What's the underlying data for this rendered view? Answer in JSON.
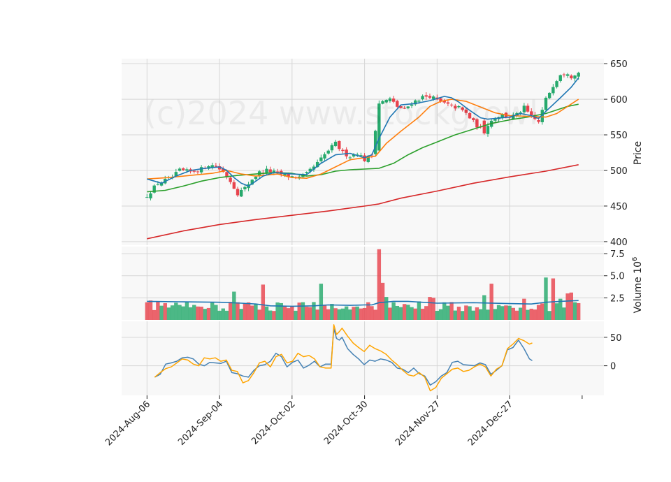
{
  "chart_data": {
    "type": "candlestick",
    "watermark": "(c)2024 www.stockgrowl",
    "colors": {
      "up": "#26a96c",
      "down": "#e8434d",
      "panel_bg": "#f8f8f8",
      "grid": "#d6d6d6",
      "ma_fast": "#1f77b4",
      "ma_mid": "#ff7f0e",
      "ma_slow": "#2ca02c",
      "ma_long": "#d62728",
      "vol_ma": "#1f77b4",
      "osc_1": "#4682b4",
      "osc_2": "#ffa500"
    },
    "x_tick_labels": [
      "2024-Aug-06",
      "2024-Sep-04",
      "2024-Oct-02",
      "2024-Oct-30",
      "2024-Nov-27",
      "2024-Dec-27"
    ],
    "x_tick_index": [
      0,
      20,
      40,
      60,
      80,
      100
    ],
    "x_range": [
      -7,
      126
    ],
    "price": {
      "ylabel": "Price",
      "ylim": [
        395,
        657
      ],
      "yticks": [
        400,
        450,
        500,
        550,
        600,
        650
      ],
      "anchors": [
        [
          0,
          465
        ],
        [
          3,
          482
        ],
        [
          7,
          490
        ],
        [
          9,
          500
        ],
        [
          12,
          498
        ],
        [
          15,
          502
        ],
        [
          17,
          508
        ],
        [
          19,
          506
        ],
        [
          21,
          498
        ],
        [
          23,
          485
        ],
        [
          25,
          468
        ],
        [
          27,
          475
        ],
        [
          29,
          488
        ],
        [
          31,
          497
        ],
        [
          33,
          500
        ],
        [
          36,
          496
        ],
        [
          39,
          492
        ],
        [
          42,
          490
        ],
        [
          44,
          495
        ],
        [
          47,
          510
        ],
        [
          50,
          528
        ],
        [
          52,
          538
        ],
        [
          54,
          525
        ],
        [
          56,
          520
        ],
        [
          58,
          525
        ],
        [
          60,
          515
        ],
        [
          62,
          522
        ],
        [
          64,
          595
        ],
        [
          67,
          600
        ],
        [
          69,
          590
        ],
        [
          71,
          585
        ],
        [
          73,
          595
        ],
        [
          76,
          603
        ],
        [
          78,
          605
        ],
        [
          80,
          598
        ],
        [
          82,
          594
        ],
        [
          84,
          590
        ],
        [
          86,
          588
        ],
        [
          88,
          580
        ],
        [
          90,
          568
        ],
        [
          92,
          558
        ],
        [
          94,
          565
        ],
        [
          96,
          575
        ],
        [
          98,
          578
        ],
        [
          100,
          575
        ],
        [
          102,
          578
        ],
        [
          104,
          588
        ],
        [
          106,
          575
        ],
        [
          108,
          568
        ],
        [
          110,
          600
        ],
        [
          112,
          620
        ],
        [
          114,
          636
        ],
        [
          116,
          638
        ],
        [
          117,
          632
        ],
        [
          118,
          636
        ],
        [
          119,
          637
        ]
      ],
      "ma_fast": [
        [
          0,
          488
        ],
        [
          4,
          482
        ],
        [
          8,
          492
        ],
        [
          12,
          500
        ],
        [
          16,
          503
        ],
        [
          20,
          505
        ],
        [
          22,
          500
        ],
        [
          24,
          490
        ],
        [
          26,
          482
        ],
        [
          28,
          478
        ],
        [
          30,
          485
        ],
        [
          32,
          492
        ],
        [
          35,
          497
        ],
        [
          40,
          495
        ],
        [
          44,
          494
        ],
        [
          48,
          510
        ],
        [
          52,
          522
        ],
        [
          56,
          524
        ],
        [
          60,
          518
        ],
        [
          62,
          522
        ],
        [
          64,
          545
        ],
        [
          67,
          575
        ],
        [
          70,
          592
        ],
        [
          74,
          594
        ],
        [
          78,
          598
        ],
        [
          82,
          604
        ],
        [
          84,
          602
        ],
        [
          86,
          596
        ],
        [
          88,
          588
        ],
        [
          90,
          581
        ],
        [
          92,
          574
        ],
        [
          94,
          572
        ],
        [
          96,
          573
        ],
        [
          100,
          575
        ],
        [
          103,
          580
        ],
        [
          106,
          577
        ],
        [
          108,
          573
        ],
        [
          110,
          583
        ],
        [
          114,
          602
        ],
        [
          117,
          617
        ],
        [
          119,
          630
        ]
      ],
      "ma_mid": [
        [
          0,
          488
        ],
        [
          6,
          490
        ],
        [
          12,
          493
        ],
        [
          18,
          496
        ],
        [
          22,
          500
        ],
        [
          26,
          495
        ],
        [
          30,
          492
        ],
        [
          36,
          495
        ],
        [
          40,
          490
        ],
        [
          44,
          489
        ],
        [
          48,
          495
        ],
        [
          52,
          505
        ],
        [
          56,
          515
        ],
        [
          60,
          518
        ],
        [
          63,
          520
        ],
        [
          66,
          538
        ],
        [
          70,
          555
        ],
        [
          75,
          575
        ],
        [
          78,
          590
        ],
        [
          81,
          597
        ],
        [
          84,
          600
        ],
        [
          88,
          597
        ],
        [
          92,
          589
        ],
        [
          96,
          581
        ],
        [
          100,
          577
        ],
        [
          105,
          576
        ],
        [
          110,
          575
        ],
        [
          113,
          580
        ],
        [
          116,
          590
        ],
        [
          119,
          600
        ]
      ],
      "ma_slow": [
        [
          0,
          470
        ],
        [
          5,
          472
        ],
        [
          10,
          478
        ],
        [
          15,
          485
        ],
        [
          20,
          490
        ],
        [
          25,
          493
        ],
        [
          30,
          495
        ],
        [
          35,
          497
        ],
        [
          40,
          496
        ],
        [
          44,
          492
        ],
        [
          48,
          494
        ],
        [
          52,
          499
        ],
        [
          56,
          501
        ],
        [
          60,
          502
        ],
        [
          64,
          503
        ],
        [
          68,
          510
        ],
        [
          72,
          522
        ],
        [
          76,
          532
        ],
        [
          80,
          540
        ],
        [
          85,
          550
        ],
        [
          90,
          558
        ],
        [
          95,
          566
        ],
        [
          100,
          571
        ],
        [
          105,
          575
        ],
        [
          110,
          580
        ],
        [
          113,
          585
        ],
        [
          116,
          590
        ],
        [
          119,
          593
        ]
      ],
      "ma_long": [
        [
          0,
          404
        ],
        [
          10,
          415
        ],
        [
          20,
          424
        ],
        [
          30,
          431
        ],
        [
          40,
          437
        ],
        [
          50,
          443
        ],
        [
          60,
          450
        ],
        [
          64,
          453
        ],
        [
          70,
          461
        ],
        [
          80,
          471
        ],
        [
          90,
          482
        ],
        [
          100,
          491
        ],
        [
          110,
          499
        ],
        [
          119,
          508
        ]
      ]
    },
    "volume": {
      "ylabel": "Volume  10",
      "ylabel_exp": "6",
      "ylim": [
        0,
        8.3
      ],
      "yticks": [
        2.5,
        5.0,
        7.5
      ],
      "ytick_labels": [
        "2.5",
        "5.0",
        "7.5"
      ],
      "highlights": [
        [
          0,
          2.0
        ],
        [
          1,
          2.2
        ],
        [
          6,
          1.4
        ],
        [
          9,
          1.7
        ],
        [
          19,
          1.7
        ],
        [
          21,
          1.3
        ],
        [
          24,
          3.2
        ],
        [
          25,
          2.0
        ],
        [
          32,
          4.0
        ],
        [
          48,
          4.1
        ],
        [
          64,
          8.0
        ],
        [
          65,
          4.2
        ],
        [
          66,
          2.6
        ],
        [
          75,
          2.1
        ],
        [
          78,
          2.6
        ],
        [
          79,
          2.5
        ],
        [
          93,
          2.8
        ],
        [
          95,
          4.1
        ],
        [
          104,
          2.4
        ],
        [
          110,
          4.8
        ],
        [
          112,
          4.7
        ],
        [
          114,
          2.4
        ],
        [
          116,
          3.0
        ],
        [
          117,
          3.1
        ],
        [
          118,
          2.0
        ],
        [
          119,
          1.9
        ]
      ],
      "ma": [
        [
          0,
          2.1
        ],
        [
          10,
          2.05
        ],
        [
          20,
          2.0
        ],
        [
          26,
          1.9
        ],
        [
          30,
          1.8
        ],
        [
          34,
          1.6
        ],
        [
          40,
          1.55
        ],
        [
          46,
          1.6
        ],
        [
          50,
          1.7
        ],
        [
          56,
          1.65
        ],
        [
          60,
          1.7
        ],
        [
          62,
          1.7
        ],
        [
          64,
          1.95
        ],
        [
          68,
          2.1
        ],
        [
          72,
          2.1
        ],
        [
          80,
          1.9
        ],
        [
          90,
          1.95
        ],
        [
          100,
          1.85
        ],
        [
          106,
          1.8
        ],
        [
          110,
          2.0
        ],
        [
          114,
          2.1
        ],
        [
          119,
          2.2
        ]
      ]
    },
    "oscillator": {
      "ylim": [
        -52,
        78
      ],
      "yticks": [
        0,
        50
      ],
      "series_1": [
        [
          0,
          -20
        ],
        [
          2,
          -15
        ],
        [
          4,
          3
        ],
        [
          6,
          5
        ],
        [
          8,
          8
        ],
        [
          10,
          14
        ],
        [
          12,
          15
        ],
        [
          14,
          12
        ],
        [
          16,
          3
        ],
        [
          18,
          0
        ],
        [
          20,
          6
        ],
        [
          22,
          5
        ],
        [
          24,
          4
        ],
        [
          26,
          8
        ],
        [
          28,
          -12
        ],
        [
          30,
          -14
        ],
        [
          32,
          -18
        ],
        [
          34,
          -20
        ],
        [
          36,
          -8
        ],
        [
          38,
          0
        ],
        [
          40,
          2
        ],
        [
          42,
          8
        ],
        [
          44,
          22
        ],
        [
          46,
          16
        ],
        [
          48,
          -2
        ],
        [
          50,
          6
        ],
        [
          52,
          10
        ],
        [
          54,
          -4
        ],
        [
          56,
          1
        ],
        [
          58,
          8
        ],
        [
          60,
          -2
        ],
        [
          62,
          3
        ],
        [
          64,
          3
        ],
        [
          65,
          65
        ],
        [
          66,
          48
        ],
        [
          67,
          45
        ],
        [
          68,
          50
        ],
        [
          70,
          30
        ],
        [
          72,
          20
        ],
        [
          74,
          12
        ],
        [
          76,
          2
        ],
        [
          78,
          10
        ],
        [
          80,
          8
        ],
        [
          82,
          12
        ],
        [
          84,
          10
        ],
        [
          86,
          6
        ],
        [
          88,
          -4
        ],
        [
          90,
          -6
        ],
        [
          92,
          -12
        ],
        [
          94,
          -4
        ],
        [
          96,
          -14
        ],
        [
          98,
          -18
        ],
        [
          100,
          -34
        ],
        [
          102,
          -28
        ],
        [
          104,
          -18
        ],
        [
          106,
          -12
        ],
        [
          108,
          6
        ],
        [
          110,
          8
        ],
        [
          112,
          2
        ],
        [
          114,
          1
        ],
        [
          116,
          0
        ],
        [
          118,
          5
        ],
        [
          120,
          2
        ],
        [
          122,
          -15
        ],
        [
          124,
          -8
        ],
        [
          126,
          0
        ],
        [
          128,
          28
        ],
        [
          130,
          32
        ],
        [
          132,
          45
        ],
        [
          134,
          30
        ],
        [
          136,
          12
        ],
        [
          137,
          9
        ]
      ],
      "series_2": [
        [
          0,
          -20
        ],
        [
          2,
          -12
        ],
        [
          4,
          -5
        ],
        [
          6,
          -2
        ],
        [
          8,
          5
        ],
        [
          10,
          12
        ],
        [
          12,
          10
        ],
        [
          14,
          3
        ],
        [
          16,
          0
        ],
        [
          18,
          14
        ],
        [
          20,
          12
        ],
        [
          22,
          14
        ],
        [
          24,
          8
        ],
        [
          26,
          10
        ],
        [
          28,
          -8
        ],
        [
          30,
          -10
        ],
        [
          32,
          -30
        ],
        [
          34,
          -26
        ],
        [
          36,
          -12
        ],
        [
          38,
          5
        ],
        [
          40,
          8
        ],
        [
          42,
          -2
        ],
        [
          44,
          16
        ],
        [
          46,
          20
        ],
        [
          48,
          5
        ],
        [
          50,
          8
        ],
        [
          52,
          22
        ],
        [
          54,
          16
        ],
        [
          56,
          18
        ],
        [
          58,
          12
        ],
        [
          60,
          -2
        ],
        [
          62,
          -4
        ],
        [
          64,
          -4
        ],
        [
          65,
          72
        ],
        [
          66,
          55
        ],
        [
          67,
          60
        ],
        [
          68,
          66
        ],
        [
          70,
          52
        ],
        [
          72,
          40
        ],
        [
          74,
          32
        ],
        [
          76,
          25
        ],
        [
          78,
          36
        ],
        [
          80,
          30
        ],
        [
          82,
          26
        ],
        [
          84,
          20
        ],
        [
          86,
          10
        ],
        [
          88,
          2
        ],
        [
          90,
          -8
        ],
        [
          92,
          -16
        ],
        [
          94,
          -18
        ],
        [
          96,
          -12
        ],
        [
          98,
          -20
        ],
        [
          100,
          -44
        ],
        [
          102,
          -38
        ],
        [
          104,
          -22
        ],
        [
          106,
          -14
        ],
        [
          108,
          -6
        ],
        [
          110,
          -4
        ],
        [
          112,
          -10
        ],
        [
          114,
          -8
        ],
        [
          116,
          -2
        ],
        [
          118,
          3
        ],
        [
          120,
          -2
        ],
        [
          122,
          -18
        ],
        [
          124,
          -6
        ],
        [
          126,
          0
        ],
        [
          128,
          30
        ],
        [
          130,
          38
        ],
        [
          132,
          48
        ],
        [
          134,
          44
        ],
        [
          136,
          38
        ],
        [
          137,
          40
        ]
      ]
    }
  }
}
